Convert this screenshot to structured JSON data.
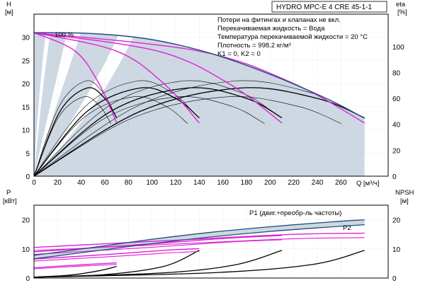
{
  "chart_data": [
    {
      "type": "line",
      "title": "HYDRO MPC-E 4 CRE 45-1-1",
      "notes": [
        "Потери на фитингах и клапанах не вкл.",
        "Перекачиваемая жидкость = Вода",
        "Температура перекачиваемой жидкости = 20 °C",
        "Плотность = 998.2 кг/м³",
        "K1 = 0, K2 = 0"
      ],
      "hundred_label": "100 %",
      "xlabel": "Q [м³/ч]",
      "ylabel_left_1": "H",
      "ylabel_left_2": "[м]",
      "ylabel_right_1": "eta",
      "ylabel_right_2": "[%]",
      "xlim": [
        0,
        300
      ],
      "ylim": [
        0,
        35
      ],
      "ylim_right": [
        0,
        125
      ],
      "x_ticks": [
        0,
        20,
        40,
        60,
        80,
        100,
        120,
        140,
        160,
        180,
        200,
        220,
        240,
        260
      ],
      "y_ticks": [
        0,
        5,
        10,
        15,
        20,
        25,
        30
      ],
      "y_ticks_right": [
        0,
        20,
        40,
        60,
        80,
        100
      ],
      "grid": true,
      "colors": {
        "qh_max": "#e020d8",
        "curve": "#000000",
        "envelope": "#1f4e79",
        "region": "#cdd8e3",
        "grid": "#bbbbbb"
      },
      "qh_curves": [
        {
          "x": [
            0,
            35,
            55,
            70
          ],
          "y": [
            31,
            27,
            20,
            11.5
          ]
        },
        {
          "x": [
            0,
            70,
            110,
            140
          ],
          "y": [
            31,
            27,
            20,
            11.5
          ]
        },
        {
          "x": [
            0,
            105,
            165,
            210
          ],
          "y": [
            31,
            27,
            20,
            11.5
          ]
        },
        {
          "x": [
            0,
            140,
            220,
            280
          ],
          "y": [
            31,
            27,
            20,
            11.5
          ]
        }
      ],
      "eta_curves": [
        {
          "x": [
            0,
            22,
            45,
            60,
            70
          ],
          "y": [
            0,
            50,
            68,
            60,
            45
          ]
        },
        {
          "x": [
            0,
            45,
            90,
            120,
            140
          ],
          "y": [
            0,
            50,
            68,
            60,
            45
          ]
        },
        {
          "x": [
            0,
            65,
            130,
            180,
            210
          ],
          "y": [
            0,
            50,
            68,
            60,
            45
          ]
        },
        {
          "x": [
            0,
            90,
            175,
            240,
            280
          ],
          "y": [
            0,
            50,
            68,
            60,
            45
          ]
        }
      ],
      "envelope": {
        "x": [
          0,
          50,
          100,
          150,
          200,
          250,
          280
        ],
        "y": [
          31,
          30.8,
          29.5,
          26.5,
          22,
          16.5,
          12.5
        ]
      }
    },
    {
      "type": "line",
      "ylabel_left_1": "P",
      "ylabel_left_2": "[кВт]",
      "ylabel_right_1": "NPSH",
      "ylabel_right_2": "[м]",
      "ylim": [
        0,
        25
      ],
      "ylim_right": [
        0,
        25
      ],
      "y_ticks": [
        0,
        10,
        20
      ],
      "y_ticks_right": [
        0,
        10,
        20
      ],
      "series": [
        {
          "name": "P1 (двиг.+преобр-ль частоты)",
          "x": [
            0,
            50,
            100,
            150,
            200,
            250,
            280
          ],
          "y": [
            7.8,
            10.5,
            13.3,
            15.7,
            17.6,
            19.2,
            20
          ]
        },
        {
          "name": "P2",
          "x": [
            0,
            50,
            100,
            150,
            200,
            250,
            280
          ],
          "y": [
            6.6,
            9.2,
            11.8,
            14.1,
            16,
            17.5,
            18.3
          ]
        }
      ],
      "p_pink_curves": [
        {
          "x": [
            0,
            30,
            55,
            70
          ],
          "y": [
            3.5,
            4.3,
            4.9,
            5.2
          ]
        },
        {
          "x": [
            0,
            70,
            110,
            140
          ],
          "y": [
            6.5,
            8.3,
            9.5,
            10.1
          ]
        },
        {
          "x": [
            0,
            105,
            165,
            210
          ],
          "y": [
            9,
            11.9,
            13.7,
            14.6
          ]
        },
        {
          "x": [
            0,
            140,
            220,
            280
          ],
          "y": [
            10.5,
            13.4,
            15,
            15.4
          ]
        }
      ],
      "npsh_curves": [
        {
          "x": [
            0,
            30,
            55,
            70
          ],
          "y": [
            0.3,
            1,
            2.5,
            4
          ]
        },
        {
          "x": [
            0,
            60,
            110,
            140
          ],
          "y": [
            0.3,
            1.2,
            4,
            9.5
          ]
        },
        {
          "x": [
            0,
            110,
            170,
            210
          ],
          "y": [
            0.3,
            1.8,
            4.5,
            9.5
          ]
        },
        {
          "x": [
            0,
            150,
            235,
            280
          ],
          "y": [
            0.3,
            1.8,
            4.6,
            9.5
          ]
        }
      ]
    }
  ]
}
